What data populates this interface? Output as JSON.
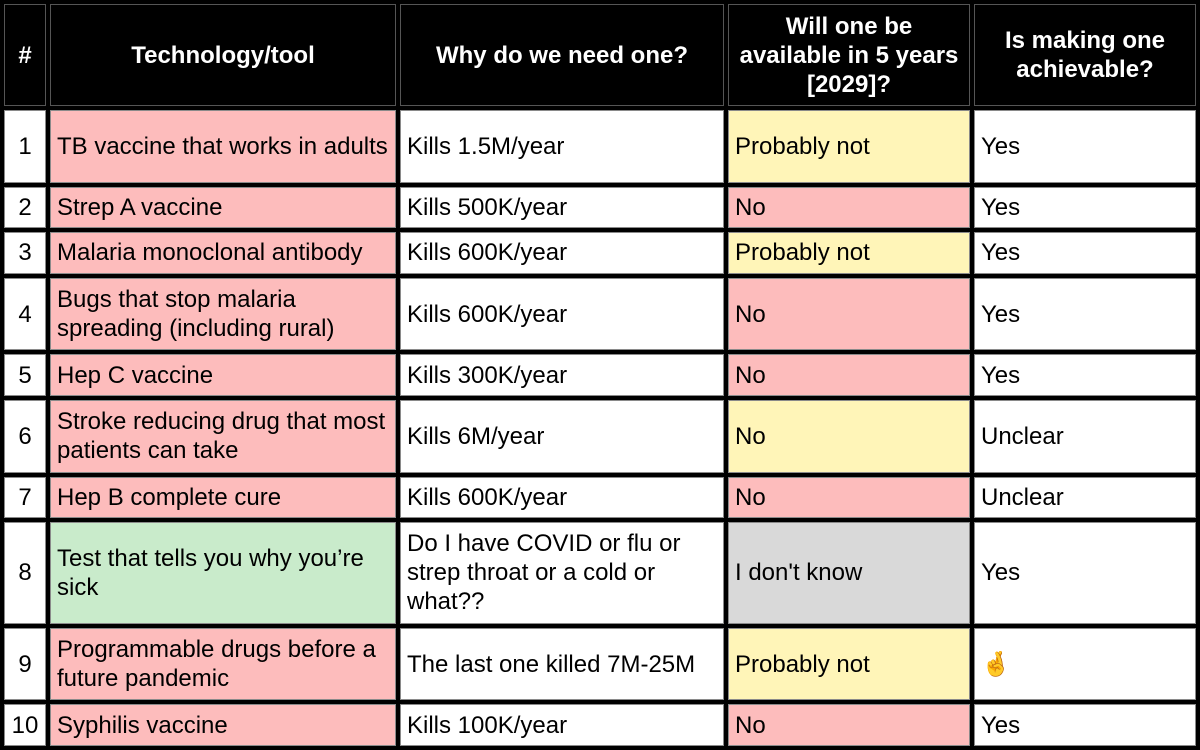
{
  "table": {
    "header": [
      "#",
      "Technology/tool",
      "Why do we need one?",
      "Will one be available in 5 years [2029]?",
      "Is making one achievable?"
    ],
    "rows": [
      [
        1,
        "TB vaccine that works in adults",
        "Kills 1.5M/year",
        "Probably not",
        "Yes"
      ],
      [
        2,
        "Strep A vaccine",
        "Kills 500K/year",
        "No",
        "Yes"
      ],
      [
        3,
        "Malaria monoclonal antibody",
        "Kills 600K/year",
        "Probably not",
        "Yes"
      ],
      [
        4,
        "Bugs that stop malaria spreading (including rural)",
        "Kills 600K/year",
        "No",
        "Yes"
      ],
      [
        5,
        "Hep C vaccine",
        "Kills 300K/year",
        "No",
        "Yes"
      ],
      [
        6,
        "Stroke reducing drug that most patients can take",
        "Kills 6M/year",
        "No",
        "Unclear"
      ],
      [
        7,
        "Hep B complete cure",
        "Kills 600K/year",
        "No",
        "Unclear"
      ],
      [
        8,
        "Test that tells you why you’re sick",
        "Do I have COVID or flu or strep throat or a cold or what??",
        "I don't know",
        "Yes"
      ],
      [
        9,
        "Programmable drugs before a future pandemic",
        "The last one killed 7M-25M",
        "Probably not",
        "🤞"
      ],
      [
        10,
        "Syphilis vaccine",
        "Kills 100K/year",
        "No",
        "Yes"
      ]
    ]
  }
}
